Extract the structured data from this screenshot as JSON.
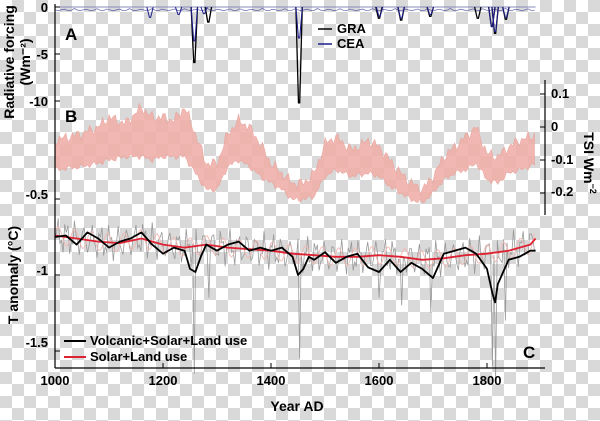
{
  "chart_data": [
    {
      "panel": "A",
      "type": "line",
      "ylabel": "Radiative forcing (Wm⁻²)",
      "ylabel_lines": [
        "Radiative forcing",
        "(Wm⁻²)"
      ],
      "y_ticks": [
        "0",
        "-5",
        "-10"
      ],
      "xlim": [
        1000,
        1900
      ],
      "ylim": [
        -13,
        0
      ],
      "series": [
        {
          "name": "GRA",
          "color": "#000000",
          "spikes": [
            [
              1258,
              -5.9
            ],
            [
              1284,
              -1.6
            ],
            [
              1452,
              -10.2
            ],
            [
              1600,
              -1.2
            ],
            [
              1641,
              -1.4
            ],
            [
              1695,
              -1.0
            ],
            [
              1783,
              -1.2
            ],
            [
              1809,
              -2.0
            ],
            [
              1815,
              -2.8
            ],
            [
              1835,
              -1.3
            ]
          ]
        },
        {
          "name": "CEA",
          "color": "#1e1e8c",
          "spikes": [
            [
              1176,
              -1.1
            ],
            [
              1229,
              -0.8
            ],
            [
              1258,
              -3.6
            ],
            [
              1276,
              -0.7
            ],
            [
              1452,
              -3.3
            ],
            [
              1601,
              -1.0
            ],
            [
              1641,
              -1.2
            ],
            [
              1695,
              -0.8
            ],
            [
              1809,
              -2.1
            ],
            [
              1815,
              -2.6
            ],
            [
              1835,
              -1.1
            ]
          ]
        }
      ]
    },
    {
      "panel": "B",
      "type": "area",
      "ylabel": "TSI Wm⁻²",
      "ylabel_parts": [
        "TSI Wm",
        "−2"
      ],
      "y_ticks": [
        "0.1",
        "0",
        "-0.1",
        "-0.2"
      ],
      "xlim": [
        1000,
        1900
      ],
      "ylim": [
        -0.27,
        0.12
      ],
      "color": "#f0b0aa",
      "band_upper": [
        [
          1000,
          -0.04
        ],
        [
          1050,
          -0.02
        ],
        [
          1080,
          0.0
        ],
        [
          1100,
          0.03
        ],
        [
          1130,
          0.01
        ],
        [
          1160,
          0.06
        ],
        [
          1180,
          0.03
        ],
        [
          1200,
          0.03
        ],
        [
          1220,
          0.02
        ],
        [
          1240,
          0.06
        ],
        [
          1260,
          -0.02
        ],
        [
          1280,
          -0.11
        ],
        [
          1300,
          -0.11
        ],
        [
          1320,
          -0.02
        ],
        [
          1340,
          0.02
        ],
        [
          1360,
          0.0
        ],
        [
          1380,
          -0.05
        ],
        [
          1400,
          -0.11
        ],
        [
          1420,
          -0.14
        ],
        [
          1440,
          -0.17
        ],
        [
          1460,
          -0.17
        ],
        [
          1480,
          -0.14
        ],
        [
          1500,
          -0.05
        ],
        [
          1520,
          -0.03
        ],
        [
          1550,
          -0.07
        ],
        [
          1580,
          -0.04
        ],
        [
          1600,
          -0.06
        ],
        [
          1620,
          -0.1
        ],
        [
          1640,
          -0.14
        ],
        [
          1660,
          -0.17
        ],
        [
          1680,
          -0.19
        ],
        [
          1700,
          -0.15
        ],
        [
          1720,
          -0.09
        ],
        [
          1740,
          -0.06
        ],
        [
          1760,
          -0.03
        ],
        [
          1780,
          0.0
        ],
        [
          1800,
          -0.08
        ],
        [
          1820,
          -0.09
        ],
        [
          1840,
          -0.06
        ],
        [
          1860,
          -0.04
        ],
        [
          1880,
          -0.03
        ],
        [
          1890,
          -0.02
        ]
      ],
      "band_lower": [
        [
          1000,
          -0.13
        ],
        [
          1050,
          -0.12
        ],
        [
          1080,
          -0.11
        ],
        [
          1100,
          -0.1
        ],
        [
          1130,
          -0.09
        ],
        [
          1160,
          -0.09
        ],
        [
          1180,
          -0.1
        ],
        [
          1200,
          -0.09
        ],
        [
          1220,
          -0.09
        ],
        [
          1240,
          -0.09
        ],
        [
          1260,
          -0.14
        ],
        [
          1280,
          -0.19
        ],
        [
          1300,
          -0.19
        ],
        [
          1320,
          -0.12
        ],
        [
          1340,
          -0.1
        ],
        [
          1360,
          -0.12
        ],
        [
          1380,
          -0.15
        ],
        [
          1400,
          -0.17
        ],
        [
          1420,
          -0.19
        ],
        [
          1440,
          -0.22
        ],
        [
          1460,
          -0.22
        ],
        [
          1480,
          -0.21
        ],
        [
          1500,
          -0.15
        ],
        [
          1520,
          -0.13
        ],
        [
          1550,
          -0.15
        ],
        [
          1580,
          -0.14
        ],
        [
          1600,
          -0.15
        ],
        [
          1620,
          -0.18
        ],
        [
          1640,
          -0.2
        ],
        [
          1660,
          -0.22
        ],
        [
          1680,
          -0.23
        ],
        [
          1700,
          -0.2
        ],
        [
          1720,
          -0.16
        ],
        [
          1740,
          -0.14
        ],
        [
          1760,
          -0.13
        ],
        [
          1780,
          -0.11
        ],
        [
          1800,
          -0.16
        ],
        [
          1820,
          -0.17
        ],
        [
          1840,
          -0.14
        ],
        [
          1860,
          -0.13
        ],
        [
          1880,
          -0.12
        ],
        [
          1890,
          -0.11
        ]
      ]
    },
    {
      "panel": "C",
      "type": "line",
      "xlabel": "Year AD",
      "ylabel": "T anomaly (°C)",
      "x_ticks": [
        "1000",
        "1200",
        "1400",
        "1600",
        "1800"
      ],
      "y_ticks": [
        "-0.5",
        "-1",
        "-1.5"
      ],
      "xlim": [
        1000,
        1900
      ],
      "ylim": [
        -1.62,
        -0.44
      ],
      "legend_position": "bottom-left",
      "series": [
        {
          "name": "Volcanic+Solar+Land use",
          "color": "#000000",
          "x": [
            1000,
            1020,
            1040,
            1060,
            1080,
            1100,
            1120,
            1140,
            1160,
            1180,
            1200,
            1220,
            1240,
            1250,
            1260,
            1270,
            1280,
            1300,
            1320,
            1340,
            1360,
            1380,
            1400,
            1420,
            1440,
            1450,
            1460,
            1470,
            1480,
            1500,
            1520,
            1540,
            1560,
            1580,
            1600,
            1620,
            1640,
            1660,
            1680,
            1700,
            1720,
            1740,
            1760,
            1780,
            1800,
            1810,
            1815,
            1820,
            1840,
            1860,
            1880,
            1890
          ],
          "y": [
            -0.75,
            -0.74,
            -0.8,
            -0.72,
            -0.76,
            -0.82,
            -0.78,
            -0.76,
            -0.72,
            -0.8,
            -0.86,
            -0.82,
            -0.84,
            -0.96,
            -0.98,
            -0.88,
            -0.8,
            -0.84,
            -0.8,
            -0.78,
            -0.84,
            -0.82,
            -0.84,
            -0.82,
            -0.88,
            -1.0,
            -0.96,
            -0.88,
            -0.9,
            -0.85,
            -0.92,
            -0.88,
            -0.86,
            -0.95,
            -0.98,
            -0.9,
            -0.98,
            -0.92,
            -0.96,
            -1.02,
            -0.86,
            -0.84,
            -0.82,
            -0.86,
            -0.96,
            -1.12,
            -1.18,
            -1.06,
            -0.9,
            -0.88,
            -0.84,
            -0.84
          ]
        },
        {
          "name": "Solar+Land use",
          "color": "#dd2233",
          "x": [
            1000,
            1040,
            1080,
            1120,
            1160,
            1200,
            1240,
            1280,
            1320,
            1360,
            1400,
            1440,
            1480,
            1520,
            1560,
            1600,
            1640,
            1680,
            1720,
            1760,
            1800,
            1840,
            1880,
            1890
          ],
          "y": [
            -0.74,
            -0.76,
            -0.78,
            -0.79,
            -0.76,
            -0.8,
            -0.82,
            -0.8,
            -0.82,
            -0.83,
            -0.84,
            -0.86,
            -0.87,
            -0.88,
            -0.88,
            -0.87,
            -0.88,
            -0.9,
            -0.89,
            -0.87,
            -0.86,
            -0.84,
            -0.8,
            -0.76
          ]
        }
      ]
    }
  ]
}
